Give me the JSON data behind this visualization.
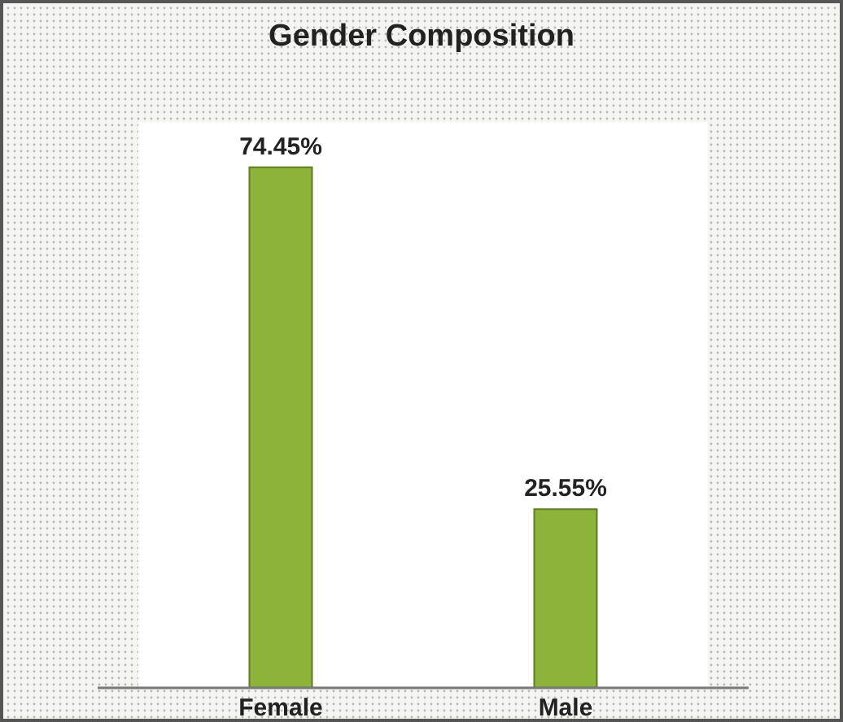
{
  "chart_data": {
    "type": "bar",
    "title": "Gender Composition",
    "categories": [
      "Female",
      "Male"
    ],
    "values": [
      74.45,
      25.55
    ],
    "value_labels": [
      "74.45%",
      "25.55%"
    ],
    "color": "#8db33a"
  }
}
